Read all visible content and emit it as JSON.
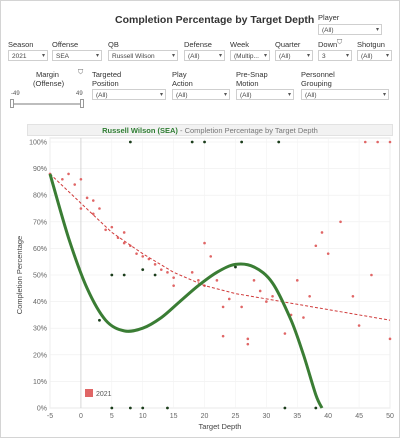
{
  "title": "Completion Percentage by Target Depth",
  "filters": {
    "player": {
      "label": "Player",
      "value": "(All)"
    },
    "season": {
      "label": "Season",
      "value": "2021"
    },
    "offense": {
      "label": "Offense",
      "value": "SEA"
    },
    "qb": {
      "label": "QB",
      "value": "Russell Wilson"
    },
    "defense": {
      "label": "Defense",
      "value": "(All)"
    },
    "week": {
      "label": "Week",
      "value": "(Multip..."
    },
    "quarter": {
      "label": "Quarter",
      "value": "(All)"
    },
    "down": {
      "label": "Down",
      "value": "3"
    },
    "shotgun": {
      "label": "Shotgun",
      "value": "(All)"
    },
    "margin": {
      "label_1": "Margin",
      "label_2": "(Offense)",
      "min": "-49",
      "max": "49"
    },
    "targeted_position": {
      "label_1": "Targeted",
      "label_2": "Position",
      "value": "(All)"
    },
    "play_action": {
      "label_1": "Play",
      "label_2": "Action",
      "value": "(All)"
    },
    "pre_snap_motion": {
      "label_1": "Pre-Snap",
      "label_2": "Motion",
      "value": "(All)"
    },
    "personnel_grouping": {
      "label_1": "Personnel",
      "label_2": "Grouping",
      "value": "(All)"
    }
  },
  "chart_header": {
    "name": "Russell Wilson (SEA)",
    "rest": " - Completion Percentage by Target Depth"
  },
  "chart_data": {
    "type": "scatter",
    "xlabel": "Target Depth",
    "ylabel": "Completion Percentage",
    "xlim": [
      -5,
      50
    ],
    "ylim": [
      0,
      100
    ],
    "x_ticks": [
      "-5",
      "0",
      "5",
      "10",
      "15",
      "20",
      "25",
      "30",
      "35",
      "40",
      "45",
      "50"
    ],
    "y_ticks": [
      "0%",
      "10%",
      "20%",
      "30%",
      "40%",
      "50%",
      "60%",
      "70%",
      "80%",
      "90%",
      "100%"
    ],
    "legend": [
      {
        "name": "2021",
        "color": "#e06666"
      }
    ],
    "colors": {
      "points_red": "#e06666",
      "points_dark": "#1b3d1b",
      "trend": "#d03b3b",
      "fit": "#3a7d34"
    },
    "red_points": [
      [
        -5,
        88
      ],
      [
        -3,
        86
      ],
      [
        -2,
        88
      ],
      [
        -1,
        84
      ],
      [
        0,
        86
      ],
      [
        1,
        79
      ],
      [
        2,
        78
      ],
      [
        0,
        75
      ],
      [
        2,
        73
      ],
      [
        3,
        75
      ],
      [
        4,
        67
      ],
      [
        5,
        68
      ],
      [
        6,
        64
      ],
      [
        7,
        66
      ],
      [
        7,
        62
      ],
      [
        8,
        61
      ],
      [
        9,
        58
      ],
      [
        10,
        57
      ],
      [
        11,
        56
      ],
      [
        12,
        54
      ],
      [
        13,
        52
      ],
      [
        14,
        51
      ],
      [
        15,
        49
      ],
      [
        15,
        46
      ],
      [
        17,
        42
      ],
      [
        18,
        51
      ],
      [
        19,
        48
      ],
      [
        20,
        46
      ],
      [
        20,
        62
      ],
      [
        21,
        57
      ],
      [
        22,
        48
      ],
      [
        23,
        38
      ],
      [
        23,
        27
      ],
      [
        24,
        41
      ],
      [
        26,
        38
      ],
      [
        27,
        26
      ],
      [
        27,
        24
      ],
      [
        28,
        48
      ],
      [
        29,
        44
      ],
      [
        30,
        40
      ],
      [
        31,
        42
      ],
      [
        33,
        28
      ],
      [
        34,
        35
      ],
      [
        35,
        48
      ],
      [
        36,
        34
      ],
      [
        37,
        42
      ],
      [
        38,
        61
      ],
      [
        39,
        66
      ],
      [
        40,
        58
      ],
      [
        42,
        70
      ],
      [
        44,
        42
      ],
      [
        45,
        31
      ],
      [
        46,
        100
      ],
      [
        47,
        50
      ],
      [
        48,
        100
      ],
      [
        50,
        100
      ],
      [
        50,
        26
      ]
    ],
    "dark_points": [
      [
        3,
        33
      ],
      [
        5,
        50
      ],
      [
        7,
        50
      ],
      [
        8,
        100
      ],
      [
        10,
        52
      ],
      [
        12,
        50
      ],
      [
        14,
        0
      ],
      [
        18,
        100
      ],
      [
        20,
        100
      ],
      [
        26,
        100
      ],
      [
        25,
        53
      ],
      [
        32,
        100
      ],
      [
        33,
        0
      ],
      [
        38,
        0
      ],
      [
        5,
        0
      ],
      [
        8,
        0
      ],
      [
        10,
        0
      ]
    ],
    "trend_line": [
      [
        -5,
        88
      ],
      [
        0,
        77
      ],
      [
        5,
        66
      ],
      [
        10,
        58
      ],
      [
        15,
        51
      ],
      [
        20,
        46
      ],
      [
        25,
        43
      ],
      [
        30,
        41
      ],
      [
        35,
        39
      ],
      [
        40,
        37
      ],
      [
        45,
        35
      ],
      [
        50,
        33
      ]
    ],
    "fit_curve": [
      [
        -5,
        88
      ],
      [
        -2,
        64
      ],
      [
        1,
        45
      ],
      [
        4,
        33
      ],
      [
        7,
        29
      ],
      [
        10,
        30
      ],
      [
        13,
        34
      ],
      [
        16,
        40
      ],
      [
        19,
        46
      ],
      [
        22,
        51
      ],
      [
        25,
        54
      ],
      [
        28,
        53
      ],
      [
        31,
        47
      ],
      [
        34,
        33
      ],
      [
        36,
        20
      ],
      [
        38,
        5
      ],
      [
        39,
        0
      ]
    ]
  }
}
